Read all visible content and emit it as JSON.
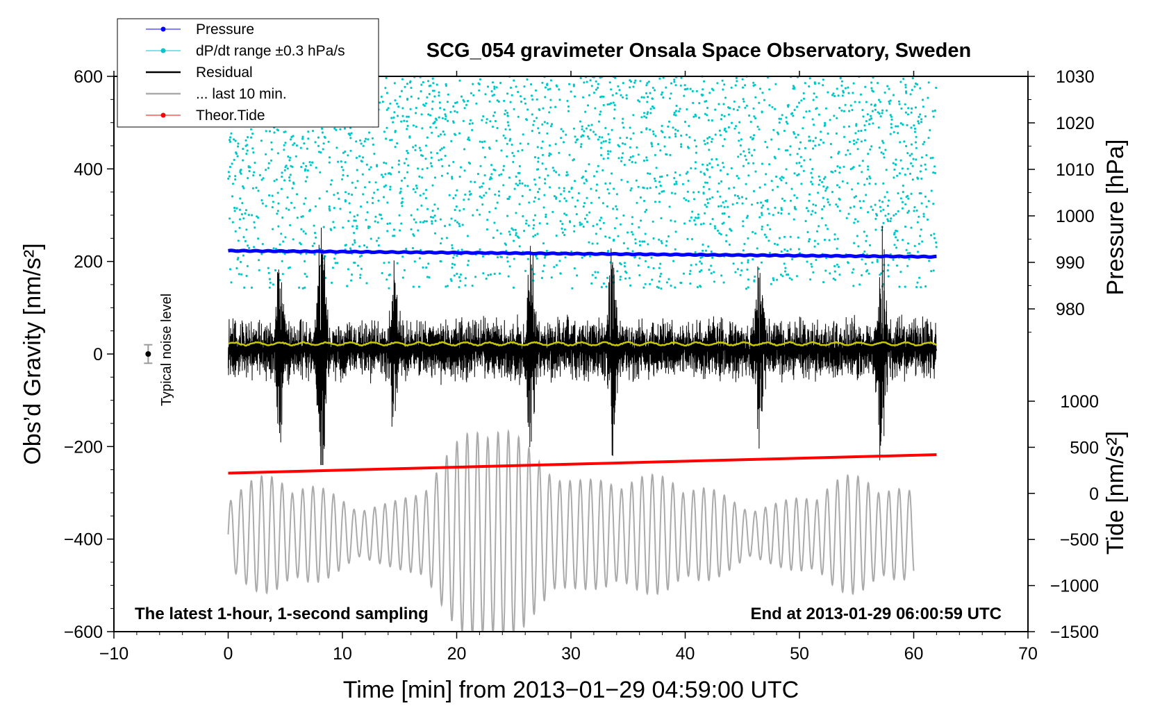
{
  "chart_data": {
    "type": "line",
    "title": "SCG_054 gravimeter Onsala Space Observatory, Sweden",
    "xlabel": "Time [min] from 2013−01−29 04:59:00 UTC",
    "ylabel_left": "Obs’d Gravity [nm/s²]",
    "ylabel_pressure": "Pressure [hPa]",
    "ylabel_tide": "Tide [nm/s²]",
    "xlim": [
      -10,
      70
    ],
    "ylim": [
      -600,
      600
    ],
    "x_ticks": [
      -10,
      0,
      10,
      20,
      30,
      40,
      50,
      60,
      70
    ],
    "x_tick_labels": [
      "−10",
      "0",
      "10",
      "20",
      "30",
      "40",
      "50",
      "60",
      "70"
    ],
    "y_ticks": [
      600,
      400,
      200,
      0,
      -200,
      -400,
      -600
    ],
    "y_tick_labels": [
      "600",
      "400",
      "200",
      "0",
      "−200",
      "−400",
      "−600"
    ],
    "pressure_axis": {
      "range": [
        970,
        1030
      ],
      "ticks": [
        980,
        990,
        1000,
        1010,
        1020,
        1030
      ],
      "tick_labels": [
        "980",
        "990",
        "1000",
        "1010",
        "1020",
        "1030"
      ]
    },
    "tide_axis": {
      "range": [
        -1500,
        1500
      ],
      "ticks": [
        -1500,
        -1000,
        -500,
        0,
        500,
        1000
      ],
      "tick_labels": [
        "−1500",
        "−1000",
        "−500",
        "0",
        "500",
        "1000"
      ]
    },
    "legend": {
      "location": "top-left",
      "entries": [
        {
          "label": "Pressure",
          "color": "#0000ff",
          "style": "line-dot"
        },
        {
          "label": "dP/dt range ±0.3 hPa/s",
          "color": "#00c8c8",
          "style": "line-dot"
        },
        {
          "label": "Residual",
          "color": "#000000",
          "style": "line"
        },
        {
          "label": "... last 10 min.",
          "color": "#aaaaaa",
          "style": "line"
        },
        {
          "label": "Theor.Tide",
          "color": "#ff0000",
          "style": "line-dot"
        }
      ]
    },
    "series": [
      {
        "name": "Pressure",
        "axis": "pressure",
        "x": [
          0,
          62
        ],
        "values": [
          992.5,
          991.2
        ],
        "color": "#0000ff"
      },
      {
        "name": "Theor.Tide",
        "axis": "tide",
        "x": [
          0,
          62
        ],
        "values": [
          220,
          420
        ],
        "color": "#ff0000"
      },
      {
        "name": "Residual",
        "axis": "gravity",
        "x_range": [
          0,
          62
        ],
        "center": 0,
        "typical_amplitude": 60,
        "peak_max": 280,
        "peak_min": -240,
        "color": "#000000"
      },
      {
        "name": "Residual smoothed",
        "axis": "gravity",
        "x_range": [
          0,
          62
        ],
        "level": 22,
        "color": "#c8c800"
      },
      {
        "name": "... last 10 min.",
        "axis": "gravity",
        "x_range": [
          0,
          60
        ],
        "center": -390,
        "amplitude_range": [
          -600,
          -155
        ],
        "color": "#aaaaaa"
      },
      {
        "name": "dP/dt range ±0.3 hPa/s",
        "axis": "gravity",
        "x_range": [
          0,
          62
        ],
        "scatter_y_range": [
          140,
          600
        ],
        "color": "#00c8c8"
      }
    ],
    "annotations": {
      "bottom_left": "The latest 1-hour, 1-second sampling",
      "bottom_right": "End at 2013-01-29 06:00:59 UTC",
      "noise_label": "Typical noise level",
      "noise_marker": {
        "x": -7,
        "y": 0,
        "error": 20
      }
    }
  }
}
